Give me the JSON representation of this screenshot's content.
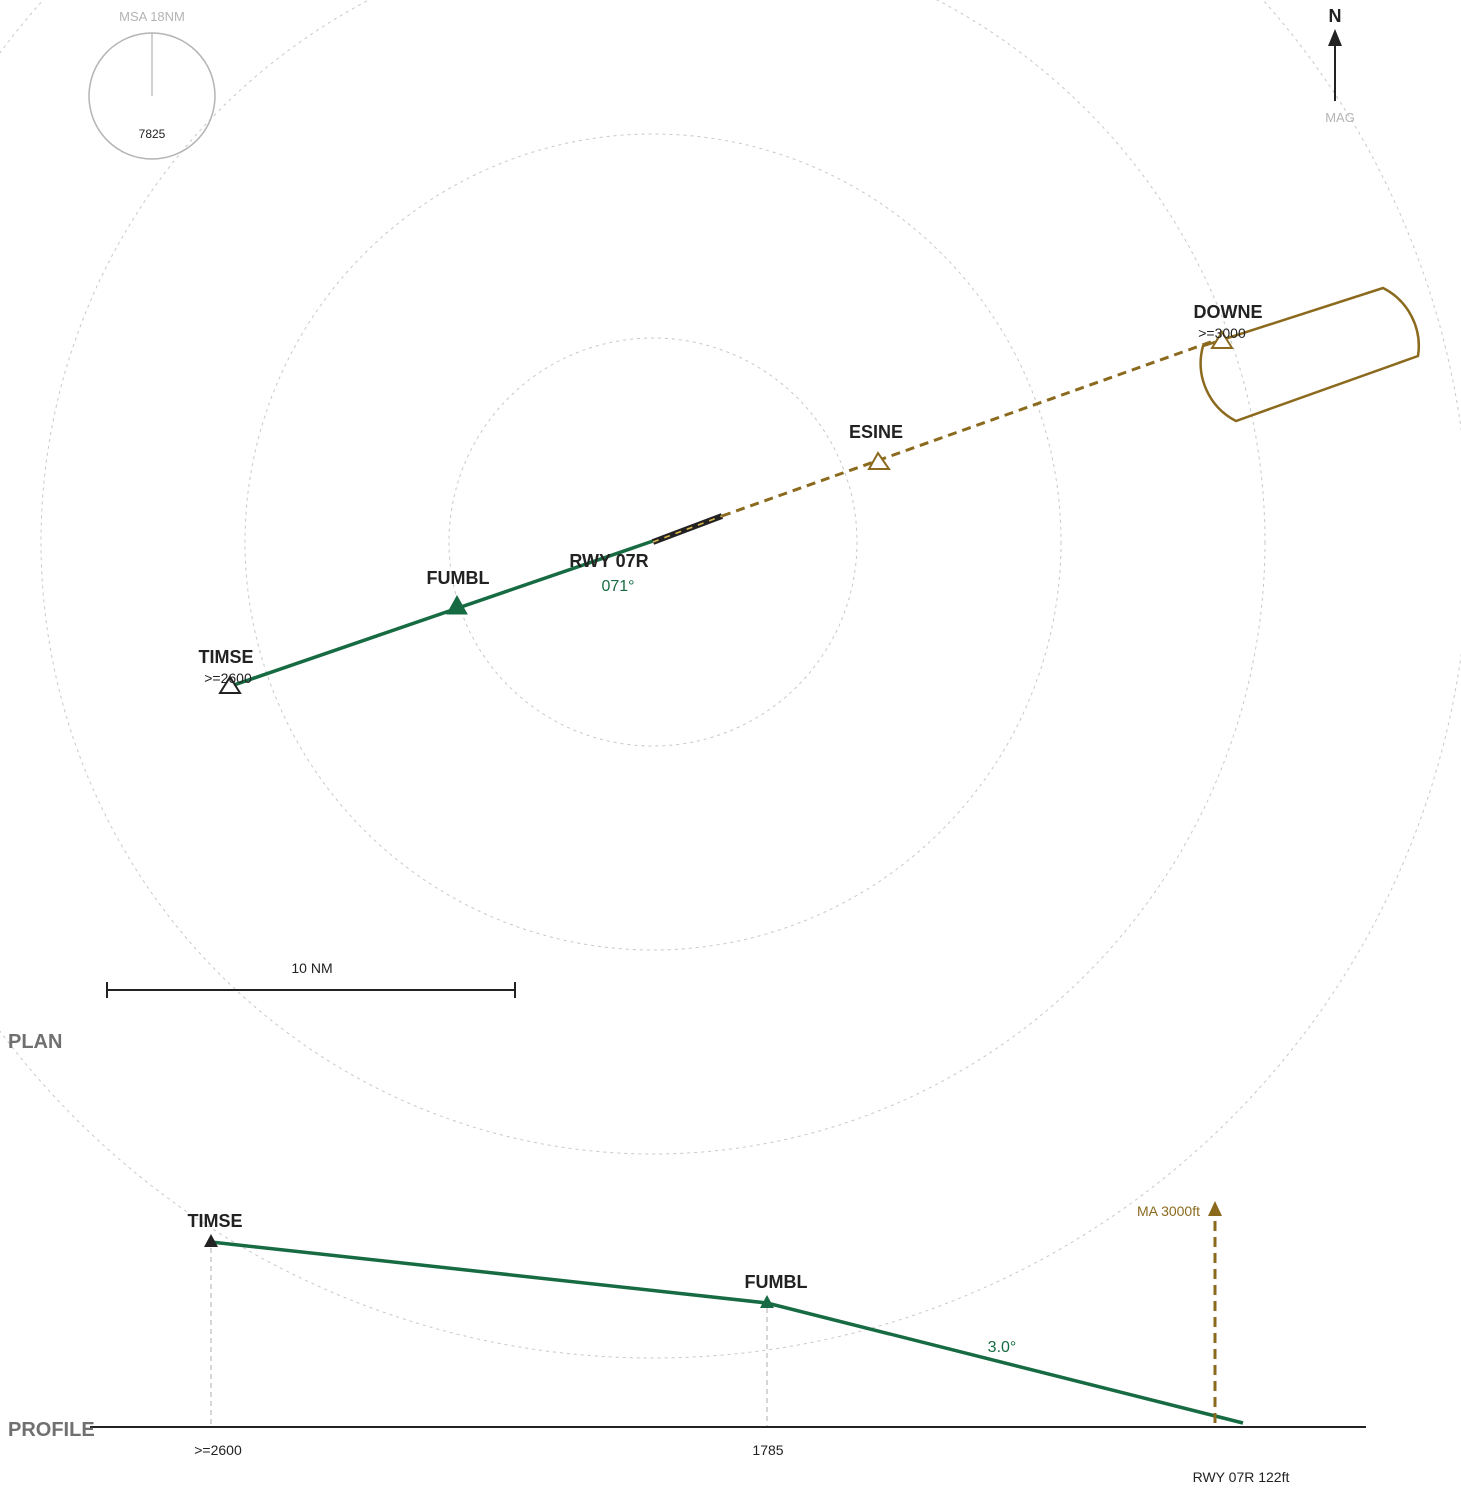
{
  "colors": {
    "approach": "#176b42",
    "missed": "#8b6a1e",
    "ink": "#222222",
    "ring": "#c8c8c8",
    "msa": "#b4b4b4",
    "section": "#707070"
  },
  "msa": {
    "title": "MSA 18NM",
    "altitude": "7825"
  },
  "north": {
    "label": "N",
    "sub": "MAG"
  },
  "runway": {
    "name": "RWY 07R",
    "course": "071°"
  },
  "fixes": {
    "timse": {
      "name": "TIMSE",
      "restriction": ">=2600"
    },
    "fumbl": {
      "name": "FUMBL"
    },
    "esine": {
      "name": "ESINE"
    },
    "downe": {
      "name": "DOWNE",
      "restriction": ">=3000"
    }
  },
  "scale_bar": {
    "label": "10 NM"
  },
  "sections": {
    "plan": "PLAN",
    "profile": "PROFILE"
  },
  "profile": {
    "timse_name": "TIMSE",
    "fumbl_name": "FUMBL",
    "timse_alt": ">=2600",
    "fumbl_alt": "1785",
    "glide_angle": "3.0°",
    "missed_label": "MA 3000ft",
    "runway_label": "RWY 07R  122ft"
  }
}
